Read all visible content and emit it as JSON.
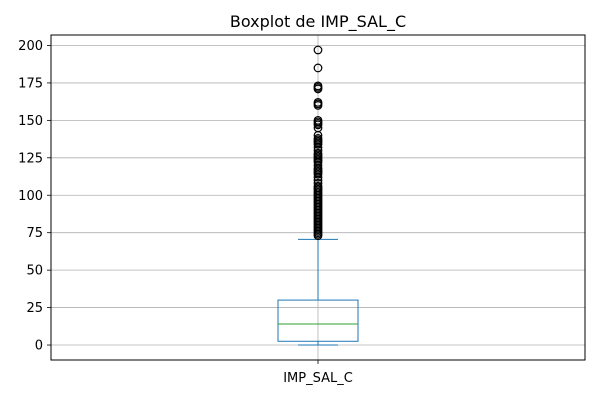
{
  "chart_data": {
    "type": "boxplot",
    "title": "Boxplot de IMP_SAL_C",
    "xlabel": "",
    "ylabel": "",
    "categories": [
      "IMP_SAL_C"
    ],
    "ylim": [
      -10,
      207
    ],
    "yticks": [
      0,
      25,
      50,
      75,
      100,
      125,
      150,
      175,
      200
    ],
    "grid": true,
    "box": {
      "whisker_low": 0,
      "q1": 2.5,
      "median": 14,
      "q3": 30,
      "whisker_high": 70.5
    },
    "outliers": [
      73,
      74,
      75,
      76,
      77,
      78,
      79,
      80,
      81,
      82,
      83,
      84,
      85,
      86,
      87,
      88,
      89,
      90,
      91,
      92,
      93,
      94,
      95,
      96,
      97,
      98,
      99,
      100,
      101,
      102,
      103,
      104,
      105,
      106,
      108,
      110,
      112,
      114,
      115,
      116,
      117,
      118,
      120,
      122,
      123,
      124,
      125,
      126,
      127,
      128,
      130,
      132,
      134,
      135,
      136,
      137,
      138,
      140,
      145,
      147,
      148,
      149,
      150,
      160,
      161,
      162,
      171,
      172,
      173,
      185,
      197
    ],
    "colors": {
      "box": "#1f77b4",
      "median": "#2ca02c",
      "grid": "#b0b0b0",
      "outlier": "#000000"
    }
  }
}
